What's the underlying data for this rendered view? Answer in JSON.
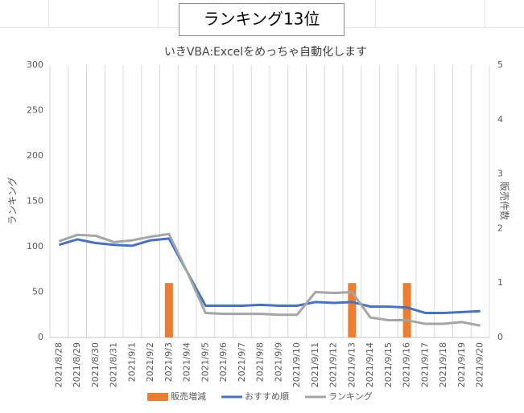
{
  "textbox": "ランキング13位",
  "chart_data": {
    "type": "combo",
    "title": "いきVBA:Excelをめっちゃ自動化します",
    "ylabel": "ランキング",
    "y2label": "販売件数",
    "categories": [
      "2021/8/28",
      "2021/8/29",
      "2021/8/30",
      "2021/8/31",
      "2021/9/1",
      "2021/9/2",
      "2021/9/3",
      "2021/9/4",
      "2021/9/5",
      "2021/9/6",
      "2021/9/7",
      "2021/9/8",
      "2021/9/9",
      "2021/9/10",
      "2021/9/11",
      "2021/9/12",
      "2021/9/13",
      "2021/9/14",
      "2021/9/15",
      "2021/9/16",
      "2021/9/17",
      "2021/9/18",
      "2021/9/19",
      "2021/9/20"
    ],
    "series": [
      {
        "name": "販売増減",
        "type": "bar",
        "axis": "y2",
        "color": "#ed7d31",
        "values": [
          null,
          null,
          null,
          null,
          null,
          null,
          1,
          null,
          null,
          null,
          null,
          null,
          null,
          null,
          null,
          null,
          1,
          null,
          null,
          1,
          null,
          null,
          null,
          null
        ]
      },
      {
        "name": "おすすめ順",
        "type": "line",
        "color": "#4472c4",
        "values": [
          102,
          108,
          104,
          102,
          101,
          107,
          109,
          72,
          35,
          35,
          35,
          36,
          35,
          35,
          39,
          38,
          39,
          34,
          34,
          33,
          27,
          27,
          28,
          29
        ]
      },
      {
        "name": "ランキング",
        "type": "line",
        "color": "#a5a5a5",
        "values": [
          106,
          113,
          112,
          105,
          107,
          111,
          114,
          72,
          27,
          26,
          26,
          26,
          25,
          25,
          50,
          49,
          50,
          22,
          19,
          19,
          15,
          15,
          17,
          13
        ]
      }
    ],
    "ylim": [
      0,
      300
    ],
    "yticks": [
      0,
      50,
      100,
      150,
      200,
      250,
      300
    ],
    "y2lim": [
      0,
      5
    ],
    "y2ticks": [
      0,
      1,
      2,
      3,
      4,
      5
    ],
    "legend": "bottom"
  }
}
